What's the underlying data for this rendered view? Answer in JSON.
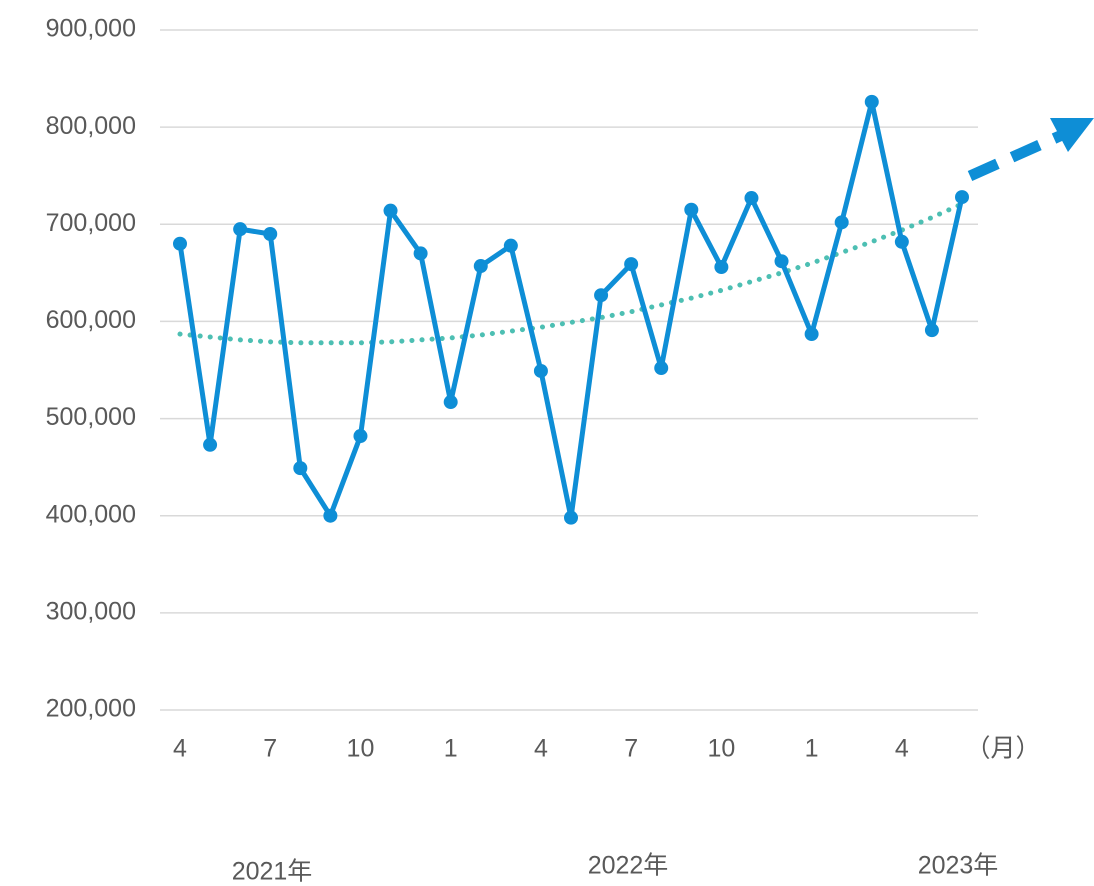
{
  "chart_data": {
    "type": "line",
    "categories": [
      "4",
      null,
      null,
      "7",
      null,
      null,
      "10",
      null,
      null,
      "1",
      null,
      null,
      "4",
      null,
      null,
      "7",
      null,
      null,
      "10",
      null,
      null,
      "1",
      null,
      null,
      "4",
      null,
      null
    ],
    "x_unit": "（月）",
    "year_labels": [
      "2021年",
      "2022年",
      "2023年"
    ],
    "series": [
      {
        "color": "#0e8ed6",
        "values": [
          680000,
          473000,
          695000,
          690000,
          449000,
          400000,
          482000,
          714000,
          670000,
          517000,
          657000,
          678000,
          549000,
          398000,
          627000,
          659000,
          552000,
          715000,
          656000,
          727000,
          662000,
          587000,
          702000,
          826000,
          682000,
          591000,
          728000
        ]
      },
      {
        "color": "#4dbfb3",
        "style": "dotted",
        "values": [
          587000,
          584000,
          581000,
          579000,
          578000,
          578000,
          578000,
          579000,
          581000,
          583000,
          586000,
          590000,
          594000,
          599000,
          604000,
          610000,
          617000,
          624000,
          632000,
          641000,
          650000,
          660000,
          671000,
          682000,
          694000,
          707000,
          721000
        ]
      }
    ],
    "ylim": [
      200000,
      900000
    ],
    "yticks": [
      {
        "value": 200000,
        "label": "200,000"
      },
      {
        "value": 300000,
        "label": "300,000"
      },
      {
        "value": 400000,
        "label": "400,000"
      },
      {
        "value": 500000,
        "label": "500,000"
      },
      {
        "value": 600000,
        "label": "600,000"
      },
      {
        "value": 700000,
        "label": "700,000"
      },
      {
        "value": 800000,
        "label": "800,000"
      },
      {
        "value": 900000,
        "label": "900,000"
      }
    ],
    "grid": true
  }
}
